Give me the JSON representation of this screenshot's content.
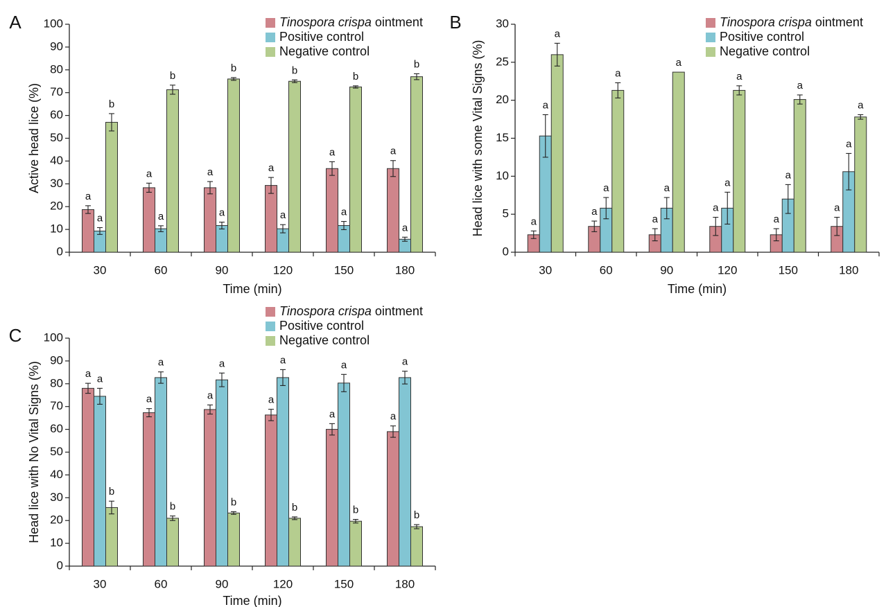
{
  "colors": {
    "treatment": "#cf858b",
    "positive": "#82c5d3",
    "negative": "#b5cd8f"
  },
  "chart_data": [
    {
      "panel": "A",
      "type": "bar",
      "xlabel": "Time (min)",
      "ylabel": "Active head lice (%)",
      "ylim": [
        0,
        100
      ],
      "yticks": [
        "0",
        "10",
        "20",
        "30",
        "40",
        "50",
        "60",
        "70",
        "80",
        "90",
        "100"
      ],
      "categories": [
        "30",
        "60",
        "90",
        "120",
        "150",
        "180"
      ],
      "legend": {
        "prefix_italic": "Tinospora crispa",
        "suffix": " ointment",
        "items": [
          "Positive control",
          "Negative control"
        ]
      },
      "series": [
        {
          "name": "Tinospora crispa ointment",
          "values": [
            18.7,
            28.3,
            28.3,
            29.3,
            36.7,
            36.7
          ],
          "errors": [
            1.7,
            2.0,
            2.7,
            3.5,
            3.0,
            3.5
          ],
          "labels": [
            "a",
            "a",
            "a",
            "a",
            "a",
            "a"
          ]
        },
        {
          "name": "Positive control",
          "values": [
            9.3,
            10.3,
            11.7,
            10.3,
            11.7,
            5.7
          ],
          "errors": [
            1.5,
            1.3,
            1.5,
            1.8,
            1.8,
            0.9
          ],
          "labels": [
            "a",
            "a",
            "a",
            "a",
            "a",
            "a"
          ]
        },
        {
          "name": "Negative control",
          "values": [
            57.0,
            71.3,
            76.0,
            75.0,
            72.5,
            77.0
          ],
          "errors": [
            3.8,
            2.0,
            0.6,
            0.6,
            0.5,
            1.3
          ],
          "labels": [
            "b",
            "b",
            "b",
            "b",
            "b",
            "b"
          ]
        }
      ]
    },
    {
      "panel": "B",
      "type": "bar",
      "xlabel": "Time (min)",
      "ylabel": "Head lice with some Vital Signs (%)",
      "ylim": [
        0,
        30
      ],
      "yticks": [
        "0",
        "5",
        "10",
        "15",
        "20",
        "25",
        "30"
      ],
      "categories": [
        "30",
        "60",
        "90",
        "120",
        "150",
        "180"
      ],
      "legend": {
        "prefix_italic": "Tinospora crispa",
        "suffix": " ointment",
        "items": [
          "Positive control",
          "Negative control"
        ]
      },
      "series": [
        {
          "name": "Tinospora crispa ointment",
          "values": [
            2.3,
            3.4,
            2.3,
            3.4,
            2.3,
            3.4
          ],
          "errors": [
            0.5,
            0.7,
            0.8,
            1.2,
            0.8,
            1.2
          ],
          "labels": [
            "a",
            "a",
            "a",
            "a",
            "a",
            "a"
          ]
        },
        {
          "name": "Positive control",
          "values": [
            15.3,
            5.8,
            5.8,
            5.8,
            7.0,
            10.6
          ],
          "errors": [
            2.8,
            1.4,
            1.4,
            2.1,
            1.9,
            2.4
          ],
          "labels": [
            "a",
            "a",
            "a",
            "a",
            "a",
            "a"
          ]
        },
        {
          "name": "Negative control",
          "values": [
            26.0,
            21.3,
            23.7,
            21.3,
            20.1,
            17.8
          ],
          "errors": [
            1.5,
            1.0,
            0.0,
            0.6,
            0.6,
            0.3
          ],
          "labels": [
            "a",
            "a",
            "a",
            "a",
            "a",
            "a"
          ]
        }
      ]
    },
    {
      "panel": "C",
      "type": "bar",
      "xlabel": "Time (min)",
      "ylabel": "Head lice with No Vital Signs (%)",
      "ylim": [
        0,
        100
      ],
      "yticks": [
        "0",
        "10",
        "20",
        "30",
        "40",
        "50",
        "60",
        "70",
        "80",
        "90",
        "100"
      ],
      "categories": [
        "30",
        "60",
        "90",
        "120",
        "150",
        "180"
      ],
      "legend": {
        "prefix_italic": "Tinospora crispa",
        "suffix": " ointment",
        "items": [
          "Positive control",
          "Negative control"
        ]
      },
      "series": [
        {
          "name": "Tinospora crispa ointment",
          "values": [
            78.0,
            67.3,
            68.7,
            66.3,
            60.0,
            59.0
          ],
          "errors": [
            2.2,
            1.8,
            2.0,
            2.5,
            2.5,
            2.5
          ],
          "labels": [
            "a",
            "a",
            "a",
            "a",
            "a",
            "a"
          ]
        },
        {
          "name": "Positive control",
          "values": [
            74.5,
            82.7,
            81.7,
            82.7,
            80.3,
            82.7
          ],
          "errors": [
            3.5,
            2.5,
            3.0,
            3.5,
            3.8,
            2.8
          ],
          "labels": [
            "a",
            "a",
            "a",
            "a",
            "a",
            "a"
          ]
        },
        {
          "name": "Negative control",
          "values": [
            25.7,
            21.0,
            23.3,
            21.0,
            19.7,
            17.3
          ],
          "errors": [
            2.8,
            1.0,
            0.6,
            0.6,
            0.8,
            0.9
          ],
          "labels": [
            "b",
            "b",
            "b",
            "b",
            "b",
            "b"
          ]
        }
      ]
    }
  ]
}
